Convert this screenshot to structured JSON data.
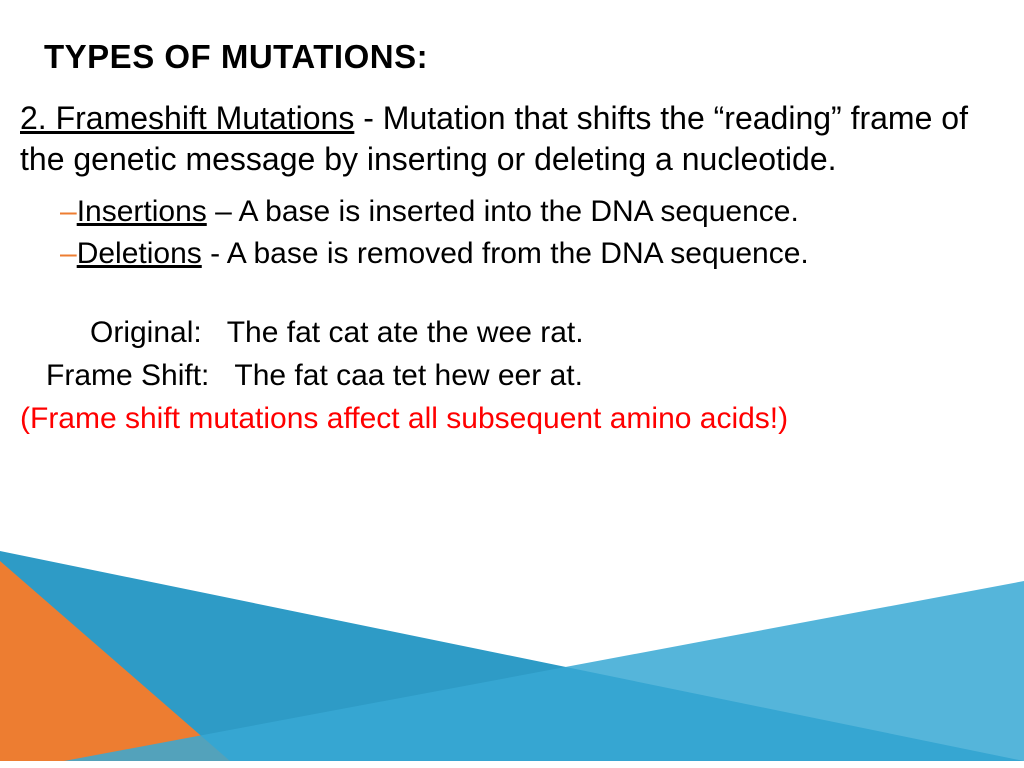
{
  "title": "TYPES OF MUTATIONS:",
  "definition": {
    "term": "2. Frameshift Mutations",
    "rest": " - Mutation that shifts the “reading” frame of the genetic message by inserting or deleting a nucleotide."
  },
  "subitems": [
    {
      "dash": "–",
      "term": "Insertions",
      "rest": " – A base is inserted into the DNA sequence."
    },
    {
      "dash": "–",
      "term": "Deletions",
      "rest": " - A base is removed from the DNA sequence."
    }
  ],
  "example": {
    "original_label": "Original:",
    "original_text": "The fat cat ate the wee rat.",
    "shift_label": "Frame Shift:",
    "shift_text": "The fat caa tet hew eer at."
  },
  "note": "(Frame shift mutations affect all subsequent amino acids!)",
  "colors": {
    "accent_orange": "#ed7d31",
    "accent_blue": "#2e9bc6",
    "note_color": "#ff0000",
    "text_color": "#000000",
    "background": "#ffffff"
  }
}
